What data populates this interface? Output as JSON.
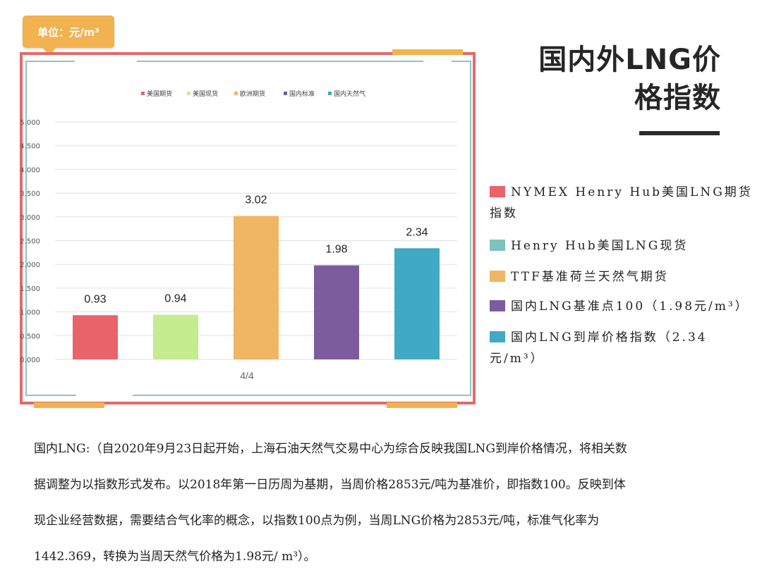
{
  "unit_badge": "单位：元/m³",
  "title_line1": "国内外LNG价",
  "title_line2": "格指数",
  "colors": {
    "frame": "#e06b6b",
    "inner_frame": "#8dc4c0",
    "accent": "#f2b24f"
  },
  "chart_data": {
    "type": "bar",
    "categories": [
      "4/4"
    ],
    "series": [
      {
        "name": "美国期货",
        "color": "#e8636a",
        "values": [
          0.93
        ]
      },
      {
        "name": "美国现货",
        "color": "#c5ec8e",
        "values": [
          0.94
        ]
      },
      {
        "name": "欧洲期货",
        "color": "#f0b664",
        "values": [
          3.02
        ]
      },
      {
        "name": "国内标准",
        "color": "#7d5c9e",
        "values": [
          1.98
        ]
      },
      {
        "name": "国内天然气",
        "color": "#3fa9c6",
        "values": [
          2.34
        ]
      }
    ],
    "data_labels": [
      "0.93",
      "0.94",
      "3.02",
      "1.98",
      "2.34"
    ],
    "yticks": [
      "0.000",
      "0.500",
      "1.000",
      "1.500",
      "2.000",
      "2.500",
      "3.000",
      "3.500",
      "4.000",
      "4.500",
      "5.000"
    ],
    "ylim": [
      0,
      5
    ],
    "grid": true,
    "legend_position": "top"
  },
  "side_legend": [
    {
      "color": "#e8636a",
      "text": "NYMEX Henry Hub美国LNG期货指数"
    },
    {
      "color": "#7fc1bc",
      "text": "Henry Hub美国LNG现货"
    },
    {
      "color": "#f0b664",
      "text": "TTF基准荷兰天然气期货"
    },
    {
      "color": "#7d5c9e",
      "text": "国内LNG基准点100（1.98元/m³）"
    },
    {
      "color": "#3fa9c6",
      "text": "国内LNG到岸价格指数（2.34元/m³）"
    }
  ],
  "description": [
    "国内LNG:（自2020年9月23日起开始，上海石油天然气交易中心为综合反映我国LNG到岸价格情况，将相关数",
    "据调整为以指数形式发布。以2018年第一日历周为基期，当周价格2853元/吨为基准价，即指数100。反映到体",
    "现企业经营数据，需要结合气化率的概念，以指数100点为例，当周LNG价格为2853元/吨，标准气化率为",
    "1442.369，转换为当周天然气价格为1.98元/ m³）。"
  ]
}
